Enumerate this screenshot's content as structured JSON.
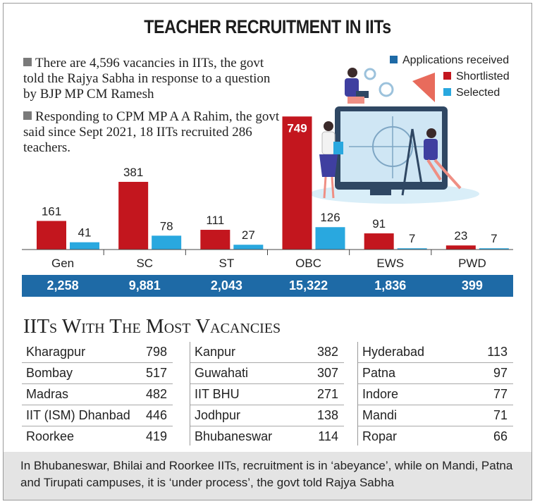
{
  "title": "TEACHER RECRUITMENT IN IITs",
  "notes": [
    "There are 4,596 vacancies in IITs, the govt told the Rajya Sabha in response to a question by BJP MP CM Ramesh",
    "Responding to CPM MP A A Rahim, the govt said since Sept 2021, 18 IITs recruited 286 teachers."
  ],
  "legend": [
    {
      "label": "Applications received",
      "color": "#1e6aa6"
    },
    {
      "label": "Shortlisted",
      "color": "#c3161e"
    },
    {
      "label": "Selected",
      "color": "#29a8df"
    }
  ],
  "chart_data": {
    "type": "bar",
    "categories": [
      "Gen",
      "SC",
      "ST",
      "OBC",
      "EWS",
      "PWD"
    ],
    "series": [
      {
        "name": "Applications received",
        "values": [
          "2,258",
          "9,881",
          "2,043",
          "15,322",
          "1,836",
          "399"
        ]
      },
      {
        "name": "Shortlisted",
        "values": [
          161,
          381,
          111,
          749,
          91,
          23
        ]
      },
      {
        "name": "Selected",
        "values": [
          41,
          78,
          27,
          126,
          7,
          7
        ]
      }
    ],
    "colors": {
      "shortlisted": "#c3161e",
      "selected": "#29a8df",
      "applications": "#1e6aa6"
    }
  },
  "iits_heading": "IITs With The Most Vacancies",
  "iits": [
    [
      {
        "name": "Kharagpur",
        "value": "798"
      },
      {
        "name": "Bombay",
        "value": "517"
      },
      {
        "name": "Madras",
        "value": "482"
      },
      {
        "name": "IIT (ISM) Dhanbad",
        "value": "446"
      },
      {
        "name": "Roorkee",
        "value": "419"
      }
    ],
    [
      {
        "name": "Kanpur",
        "value": "382"
      },
      {
        "name": "Guwahati",
        "value": "307"
      },
      {
        "name": "IIT BHU",
        "value": "271"
      },
      {
        "name": "Jodhpur",
        "value": "138"
      },
      {
        "name": "Bhubaneswar",
        "value": "114"
      }
    ],
    [
      {
        "name": "Hyderabad",
        "value": "113"
      },
      {
        "name": "Patna",
        "value": "97"
      },
      {
        "name": "Indore",
        "value": "77"
      },
      {
        "name": "Mandi",
        "value": "71"
      },
      {
        "name": "Ropar",
        "value": "66"
      }
    ]
  ],
  "footnote": "In Bhubaneswar, Bhilai and Roorkee IITs, recruitment is in ‘abeyance’, while on Mandi, Patna and Tirupati campuses, it is ‘under process’, the govt told Rajya Sabha"
}
